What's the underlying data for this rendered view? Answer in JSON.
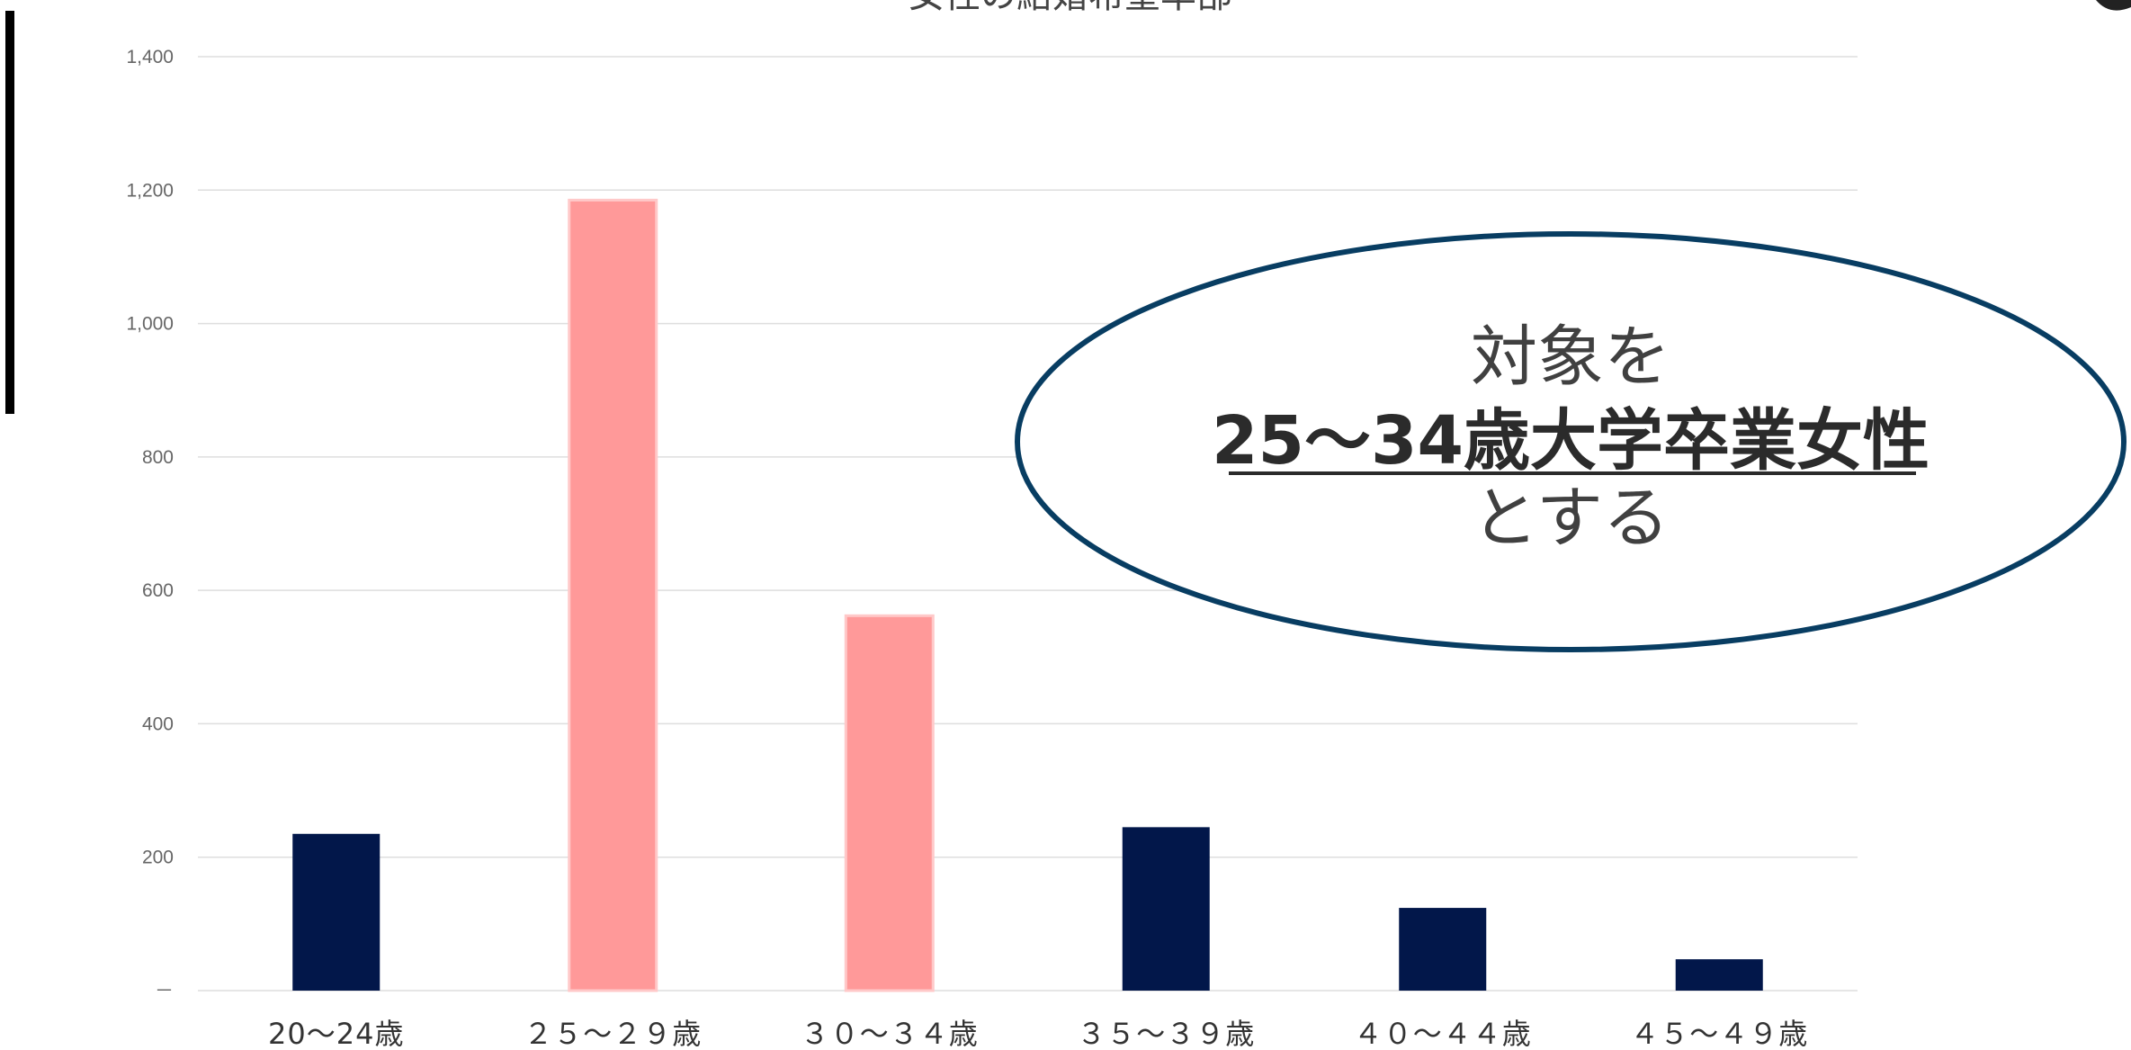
{
  "colors": {
    "bar_default": "#02174a",
    "bar_highlight": "#ff9999",
    "highlight_stroke": "#ffc9c9",
    "ellipse_stroke": "#083d62",
    "grid": "#dedede",
    "left_bar": "#000000"
  },
  "chart_data": {
    "type": "bar",
    "title": "女性の結婚希望率部",
    "categories": [
      "20～24歳",
      "２５～２９歳",
      "３０～３４歳",
      "３５～３９歳",
      "４０～４４歳",
      "４５～４９歳"
    ],
    "values": [
      235,
      1185,
      562,
      245,
      124,
      47
    ],
    "highlighted": [
      false,
      true,
      true,
      false,
      false,
      false
    ],
    "ylim": [
      0,
      1400
    ],
    "yticks": [
      0,
      200,
      400,
      600,
      800,
      1000,
      1200,
      1400
    ],
    "ytick_labels": [
      "－",
      "200",
      "400",
      "600",
      "800",
      "1,000",
      "1,200",
      "1,400"
    ],
    "grid": true,
    "legend": "none"
  },
  "callout": {
    "line1": "対象を",
    "line2": "25～34歳大学卒業女性",
    "line3": "とする"
  }
}
